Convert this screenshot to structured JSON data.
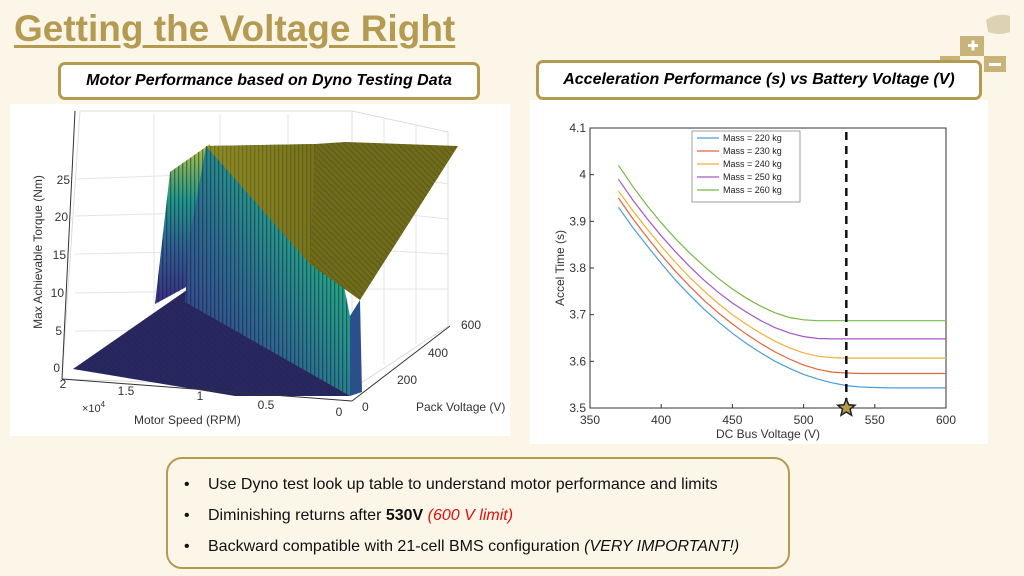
{
  "slide": {
    "title": "Getting the Voltage Right"
  },
  "colors": {
    "accent": "#b59a52",
    "background": "#fbf6e8",
    "highlight_red": "#e01010"
  },
  "left_figure": {
    "caption": "Motor Performance based on Dyno Testing Data",
    "z_label": "Max Achievable Torque (Nm)",
    "z_ticks": [
      "0",
      "5",
      "10",
      "15",
      "20",
      "25"
    ],
    "x_label": "Motor Speed (RPM)",
    "x_ticks": [
      "2",
      "1.5",
      "1",
      "0.5",
      "0"
    ],
    "x_multiplier": "×10",
    "x_multiplier_exp": "4",
    "y_label": "Pack Voltage (V)",
    "y_ticks": [
      "0",
      "200",
      "400",
      "600"
    ]
  },
  "chart_data": {
    "type": "line",
    "title": "Acceleration Performance (s) vs Battery Voltage (V)",
    "xlabel": "DC Bus Voltage (V)",
    "ylabel": "Accel Time (s)",
    "xlim": [
      350,
      600
    ],
    "ylim": [
      3.5,
      4.1
    ],
    "x_ticks": [
      "350",
      "400",
      "450",
      "500",
      "550",
      "600"
    ],
    "y_ticks": [
      "3.5",
      "3.6",
      "3.7",
      "3.8",
      "3.9",
      "4",
      "4.1"
    ],
    "x": [
      370,
      380,
      390,
      400,
      410,
      420,
      430,
      440,
      450,
      460,
      470,
      480,
      490,
      500,
      510,
      520,
      530,
      540,
      550,
      560,
      570,
      580,
      590,
      600
    ],
    "series": [
      {
        "name": "Mass = 220 kg",
        "color": "#4a9fd8",
        "values": [
          3.93,
          3.887,
          3.848,
          3.81,
          3.774,
          3.742,
          3.712,
          3.685,
          3.66,
          3.638,
          3.618,
          3.6,
          3.585,
          3.572,
          3.562,
          3.554,
          3.548,
          3.545,
          3.544,
          3.543,
          3.543,
          3.543,
          3.543,
          3.543
        ]
      },
      {
        "name": "Mass = 230 kg",
        "color": "#e0673a",
        "values": [
          3.95,
          3.906,
          3.866,
          3.828,
          3.793,
          3.761,
          3.731,
          3.704,
          3.68,
          3.658,
          3.638,
          3.62,
          3.605,
          3.592,
          3.583,
          3.577,
          3.575,
          3.574,
          3.574,
          3.574,
          3.574,
          3.574,
          3.574,
          3.574
        ]
      },
      {
        "name": "Mass = 240 kg",
        "color": "#eeb235",
        "values": [
          3.965,
          3.923,
          3.884,
          3.847,
          3.812,
          3.78,
          3.751,
          3.724,
          3.7,
          3.679,
          3.66,
          3.643,
          3.629,
          3.618,
          3.611,
          3.608,
          3.607,
          3.607,
          3.607,
          3.607,
          3.607,
          3.607,
          3.607,
          3.607
        ]
      },
      {
        "name": "Mass = 250 kg",
        "color": "#a657c5",
        "values": [
          3.99,
          3.946,
          3.906,
          3.869,
          3.835,
          3.803,
          3.774,
          3.748,
          3.725,
          3.705,
          3.687,
          3.672,
          3.661,
          3.653,
          3.649,
          3.648,
          3.648,
          3.648,
          3.648,
          3.648,
          3.648,
          3.648,
          3.648,
          3.648
        ]
      },
      {
        "name": "Mass = 260 kg",
        "color": "#78b945",
        "values": [
          4.02,
          3.975,
          3.934,
          3.897,
          3.863,
          3.832,
          3.804,
          3.778,
          3.755,
          3.735,
          3.718,
          3.704,
          3.694,
          3.689,
          3.687,
          3.687,
          3.687,
          3.687,
          3.687,
          3.687,
          3.687,
          3.687,
          3.687,
          3.687
        ]
      }
    ],
    "marker_voltage": 530
  },
  "bullets": [
    {
      "text": "Use Dyno test look up table to understand motor performance and limits"
    },
    {
      "text": "Diminishing returns after ",
      "bold": "530V",
      "red": "(600 V limit)"
    },
    {
      "text": "Backward compatible with 21-cell BMS configuration ",
      "italic": "(VERY IMPORTANT!)"
    }
  ],
  "bullet_symbol": "•"
}
